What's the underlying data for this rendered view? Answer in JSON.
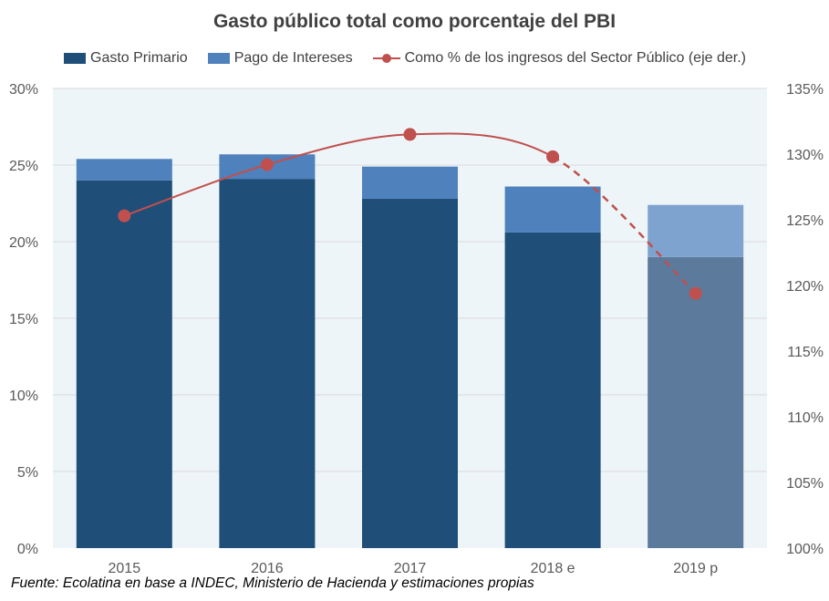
{
  "chart_data": {
    "type": "bar",
    "title": "Gasto público total como porcentaje del PBI",
    "categories": [
      "2015",
      "2016",
      "2017",
      "2018 e",
      "2019 p"
    ],
    "series": [
      {
        "name": "Gasto Primario",
        "kind": "bar",
        "stacked": true,
        "axis": "left",
        "values": [
          24.0,
          24.1,
          22.8,
          20.6,
          19.0
        ],
        "color": "#1F4E79",
        "projected_color": "#5B7A9C"
      },
      {
        "name": "Pago de Intereses",
        "kind": "bar",
        "stacked": true,
        "axis": "left",
        "values": [
          1.4,
          1.6,
          2.1,
          3.0,
          3.4
        ],
        "color": "#4F81BD",
        "projected_color": "#7FA3CF"
      },
      {
        "name": "Como % de los ingresos del Sector Público (eje der.)",
        "kind": "line",
        "axis": "right",
        "values": [
          125.3,
          129.2,
          131.5,
          129.8,
          119.4
        ],
        "color": "#C0504D",
        "dashed_from_index": 3
      }
    ],
    "left_axis": {
      "ylim": [
        0,
        30
      ],
      "ticks": [
        "0%",
        "5%",
        "10%",
        "15%",
        "20%",
        "25%",
        "30%"
      ]
    },
    "right_axis": {
      "ylim": [
        100,
        135
      ],
      "ticks": [
        "100%",
        "105%",
        "110%",
        "115%",
        "120%",
        "125%",
        "130%",
        "135%"
      ]
    },
    "grid": true,
    "legend_position": "top",
    "source": "Fuente: Ecolatina en base a INDEC, Ministerio de Hacienda y estimaciones propias",
    "colors": {
      "plot_background": "#EEF5F9",
      "gridline": "#D9D9D9",
      "axis_text": "#595959"
    }
  }
}
